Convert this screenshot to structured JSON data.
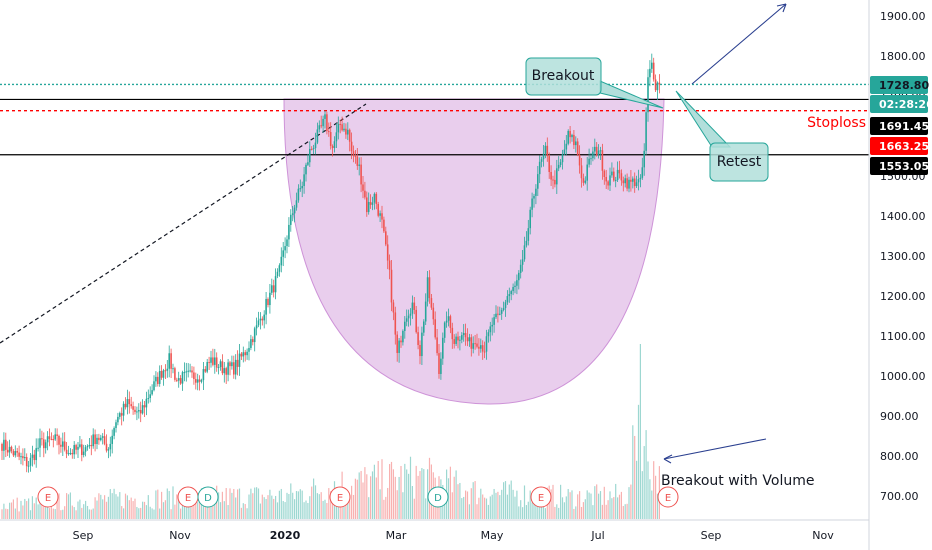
{
  "chart_data": {
    "type": "candlestick",
    "ylim": [
      640,
      1960
    ],
    "grid": false,
    "y_ticks": [
      "1900.00",
      "1800.00",
      "1700.00",
      "1500.00",
      "1400.00",
      "1300.00",
      "1200.00",
      "1100.00",
      "1000.00",
      "900.00",
      "800.00",
      "700.00"
    ],
    "x_ticks": [
      "Sep",
      "Nov",
      "2020",
      "Mar",
      "May",
      "Jul",
      "Sep",
      "Nov"
    ],
    "price_labels": [
      {
        "label": "1728.80",
        "value": 1728.8,
        "color": "#26a69a",
        "text_color": "#131722"
      },
      {
        "label": "02:28:26",
        "value": 1691.45,
        "color": "#26a69a",
        "text_color": "#ffffff"
      },
      {
        "label": "1691.45",
        "value": 1691.45,
        "color": "#000000",
        "text_color": "#ffffff"
      },
      {
        "label": "1663.25",
        "value": 1663.25,
        "color": "#ff0000",
        "text_color": "#ffffff"
      },
      {
        "label": "1553.05",
        "value": 1553.05,
        "color": "#000000",
        "text_color": "#ffffff"
      }
    ],
    "levels": [
      {
        "value": 1728.8,
        "style": "dotted",
        "color": "#26a69a"
      },
      {
        "value": 1691.45,
        "style": "solid",
        "color": "#000000"
      },
      {
        "value": 1663.25,
        "style": "dotted",
        "color": "#ff0000",
        "label": "Stoploss"
      },
      {
        "value": 1553.05,
        "style": "solid",
        "color": "#000000"
      }
    ],
    "annotations": [
      {
        "text": "Breakout",
        "type": "callout"
      },
      {
        "text": "Retest",
        "type": "callout"
      },
      {
        "text": "Breakout with Volume",
        "type": "text"
      }
    ],
    "events": [
      {
        "label": "E",
        "color": "#ef5350"
      },
      {
        "label": "E",
        "color": "#ef5350"
      },
      {
        "label": "D",
        "color": "#26a69a"
      },
      {
        "label": "E",
        "color": "#ef5350"
      },
      {
        "label": "D",
        "color": "#26a69a"
      },
      {
        "label": "E",
        "color": "#ef5350"
      },
      {
        "label": "E",
        "color": "#ef5350"
      }
    ],
    "price_anchors": [
      [
        0,
        830
      ],
      [
        8,
        800
      ],
      [
        14,
        780
      ],
      [
        20,
        830
      ],
      [
        28,
        840
      ],
      [
        36,
        810
      ],
      [
        44,
        820
      ],
      [
        50,
        850
      ],
      [
        56,
        820
      ],
      [
        60,
        890
      ],
      [
        66,
        930
      ],
      [
        72,
        900
      ],
      [
        78,
        960
      ],
      [
        84,
        1010
      ],
      [
        88,
        1040
      ],
      [
        92,
        990
      ],
      [
        98,
        1000
      ],
      [
        104,
        1000
      ],
      [
        110,
        1040
      ],
      [
        116,
        1020
      ],
      [
        122,
        1020
      ],
      [
        128,
        1060
      ],
      [
        134,
        1120
      ],
      [
        140,
        1190
      ],
      [
        146,
        1260
      ],
      [
        150,
        1350
      ],
      [
        154,
        1430
      ],
      [
        158,
        1480
      ],
      [
        162,
        1560
      ],
      [
        166,
        1600
      ],
      [
        170,
        1640
      ],
      [
        174,
        1570
      ],
      [
        178,
        1630
      ],
      [
        182,
        1610
      ],
      [
        184,
        1560
      ],
      [
        188,
        1520
      ],
      [
        192,
        1420
      ],
      [
        196,
        1450
      ],
      [
        200,
        1380
      ],
      [
        204,
        1250
      ],
      [
        208,
        1050
      ],
      [
        212,
        1150
      ],
      [
        216,
        1180
      ],
      [
        220,
        1060
      ],
      [
        224,
        1230
      ],
      [
        228,
        1100
      ],
      [
        230,
        1020
      ],
      [
        234,
        1150
      ],
      [
        238,
        1090
      ],
      [
        242,
        1110
      ],
      [
        246,
        1080
      ],
      [
        250,
        1090
      ],
      [
        254,
        1070
      ],
      [
        258,
        1130
      ],
      [
        262,
        1150
      ],
      [
        266,
        1200
      ],
      [
        270,
        1220
      ],
      [
        274,
        1280
      ],
      [
        278,
        1400
      ],
      [
        282,
        1510
      ],
      [
        286,
        1560
      ],
      [
        290,
        1480
      ],
      [
        294,
        1530
      ],
      [
        298,
        1600
      ],
      [
        302,
        1580
      ],
      [
        306,
        1480
      ],
      [
        310,
        1550
      ],
      [
        314,
        1570
      ],
      [
        318,
        1490
      ],
      [
        322,
        1500
      ],
      [
        326,
        1500
      ],
      [
        330,
        1480
      ],
      [
        334,
        1490
      ],
      [
        336,
        1480
      ],
      [
        338,
        1560
      ],
      [
        340,
        1740
      ],
      [
        342,
        1780
      ],
      [
        344,
        1730
      ],
      [
        346,
        1728.8
      ]
    ],
    "volume_levels": [
      [
        0,
        18
      ],
      [
        60,
        26
      ],
      [
        150,
        30
      ],
      [
        180,
        45
      ],
      [
        220,
        55
      ],
      [
        250,
        35
      ],
      [
        300,
        28
      ],
      [
        330,
        30
      ],
      [
        336,
        175
      ],
      [
        338,
        90
      ],
      [
        346,
        50
      ]
    ]
  }
}
